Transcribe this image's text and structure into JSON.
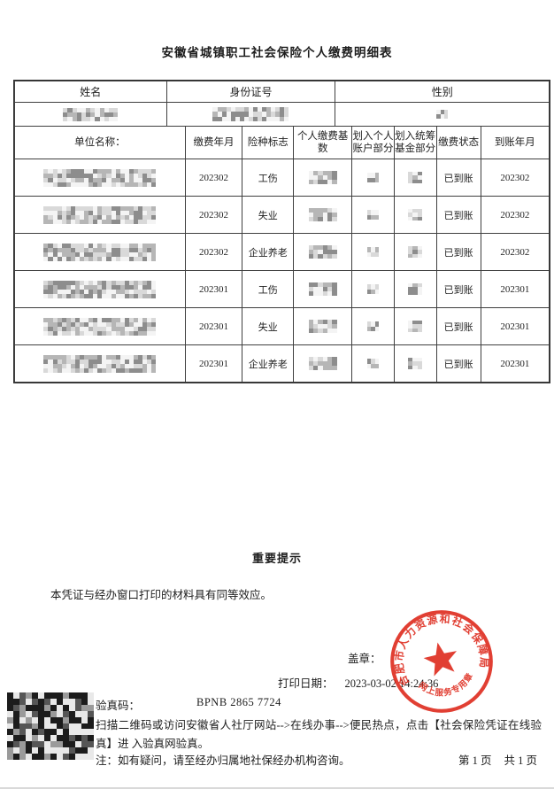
{
  "title": "安徽省城镇职工社会保险个人缴费明细表",
  "person_table": {
    "headers": {
      "name": "姓名",
      "id_number": "身份证号",
      "gender": "性别"
    }
  },
  "detail_table": {
    "headers": {
      "unit": "单位名称：",
      "pay_month": "缴费年月",
      "insurance": "险种标志",
      "base": "个人缴费基数",
      "personal_account": "划入个人\n账户部分",
      "pooled_fund": "划入统筹\n基金部分",
      "status": "缴费状态",
      "credit_month": "到账年月"
    },
    "rows": [
      {
        "pay_month": "202302",
        "insurance": "工伤",
        "status": "已到账",
        "credit_month": "202302"
      },
      {
        "pay_month": "202302",
        "insurance": "失业",
        "status": "已到账",
        "credit_month": "202302"
      },
      {
        "pay_month": "202302",
        "insurance": "企业养老",
        "status": "已到账",
        "credit_month": "202302"
      },
      {
        "pay_month": "202301",
        "insurance": "工伤",
        "status": "已到账",
        "credit_month": "202301"
      },
      {
        "pay_month": "202301",
        "insurance": "失业",
        "status": "已到账",
        "credit_month": "202301"
      },
      {
        "pay_month": "202301",
        "insurance": "企业养老",
        "status": "已到账",
        "credit_month": "202301"
      }
    ]
  },
  "notice": {
    "heading": "重要提示",
    "body": "本凭证与经办窗口打印的材料具有同等效应。"
  },
  "seal_section": {
    "seal_label": "盖章：",
    "print_date_label": "打印日期：",
    "print_date": "2023-03-02 14:24:36",
    "seal": {
      "ring_text": "合肥市人力资源和社会保障局",
      "bottom_text": "网上服务专用章",
      "color": "#dd2517"
    }
  },
  "verify": {
    "code_label": "验真码：",
    "code": "BPNB 2865 7724",
    "instruction": "扫描二维码或访问安徽省人社厅网站-->在线办事-->便民热点，点击【社会保险凭证在线验真】进 入验真网验真。",
    "note": "注：如有疑问，请至经办归属地社保经办机构咨询。"
  },
  "footer": {
    "page_current": "第 1 页",
    "page_total": "共 1 页"
  }
}
